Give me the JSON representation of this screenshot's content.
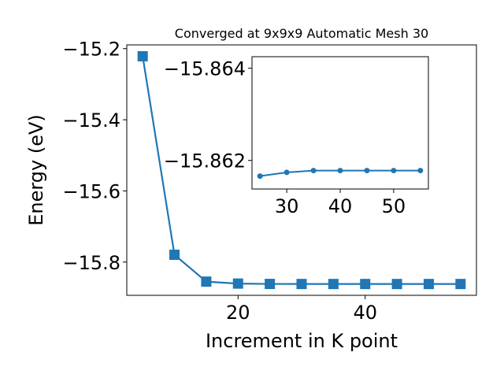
{
  "chart_data": [
    {
      "type": "line",
      "title": "Converged at 9x9x9 Automatic Mesh 30",
      "xlabel": "Increment in K point",
      "ylabel": "Energy (eV)",
      "x": [
        5,
        10,
        15,
        20,
        25,
        30,
        35,
        40,
        45,
        50,
        55
      ],
      "series": [
        {
          "values": [
            -15.2215,
            -15.7795,
            -15.855,
            -15.8605,
            -15.8615,
            -15.8617,
            -15.8617,
            -15.8617,
            -15.8617,
            -15.8617,
            -15.8617
          ],
          "color": "#1f77b4",
          "marker": "square"
        }
      ],
      "xlim": [
        2.5,
        57.5
      ],
      "ylim": [
        -15.8935,
        -15.1895
      ],
      "xticks": [
        20,
        40
      ],
      "xtick_labels": [
        "20",
        "40"
      ],
      "yticks": [
        -15.2,
        -15.4,
        -15.6,
        -15.8
      ],
      "ytick_labels": [
        "−15.2",
        "−15.4",
        "−15.6",
        "−15.8"
      ],
      "grid": false
    },
    {
      "type": "line",
      "title": "",
      "xlabel": "",
      "ylabel": "",
      "x": [
        25,
        30,
        35,
        40,
        45,
        50,
        55
      ],
      "series": [
        {
          "values": [
            -15.86166,
            -15.86174,
            -15.86178,
            -15.86178,
            -15.86178,
            -15.86178,
            -15.86178
          ],
          "color": "#1f77b4",
          "marker": "circle"
        }
      ],
      "xlim": [
        23.5,
        56.5
      ],
      "ylim": [
        -15.86138,
        -15.86425
      ],
      "xticks": [
        30,
        40,
        50
      ],
      "xtick_labels": [
        "30",
        "40",
        "50"
      ],
      "yticks": [
        -15.864,
        -15.862
      ],
      "ytick_labels": [
        "−15.864",
        "−15.862"
      ],
      "grid": false
    }
  ]
}
